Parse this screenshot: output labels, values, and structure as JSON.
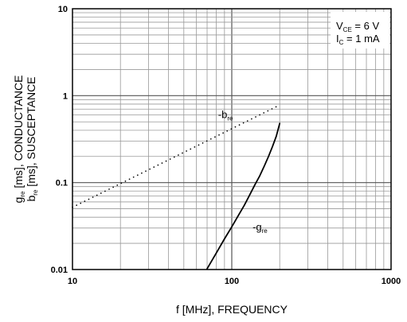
{
  "chart_data": {
    "type": "line",
    "title": "",
    "xlabel": "f [MHz], FREQUENCY",
    "ylabel_lines": [
      {
        "main": "g",
        "sub": "re",
        "rest": " [ms], CONDUCTANCE"
      },
      {
        "main": "b",
        "sub": "re",
        "rest": " [ms], SUSCEPTANCE"
      }
    ],
    "x_scale": "log",
    "y_scale": "log",
    "xlim": [
      10,
      1000
    ],
    "ylim": [
      0.01,
      10
    ],
    "x_ticks": [
      {
        "value": 10,
        "label": "10"
      },
      {
        "value": 100,
        "label": "100"
      },
      {
        "value": 1000,
        "label": "1000"
      }
    ],
    "y_ticks": [
      {
        "value": 10,
        "label": "10"
      },
      {
        "value": 1,
        "label": "1"
      },
      {
        "value": 0.1,
        "label": "0.1"
      },
      {
        "value": 0.01,
        "label": "0.01"
      }
    ],
    "grid": true,
    "conditions": [
      {
        "main": "V",
        "sub": "CE",
        "rest": " = 6 V"
      },
      {
        "main": "I",
        "sub": "C",
        "rest": " = 1 mA"
      }
    ],
    "series": [
      {
        "label_main": "-b",
        "label_sub": "re",
        "style": "dotted",
        "x": [
          10,
          200
        ],
        "y": [
          0.052,
          0.78
        ],
        "label_at": {
          "x": 82,
          "y": 0.55
        }
      },
      {
        "label_main": "-g",
        "label_sub": "re",
        "style": "solid",
        "x": [
          70,
          80,
          90,
          100,
          110,
          120,
          130,
          140,
          150,
          160,
          170,
          180,
          190,
          200
        ],
        "y": [
          0.0102,
          0.0155,
          0.0225,
          0.031,
          0.042,
          0.055,
          0.073,
          0.095,
          0.12,
          0.155,
          0.2,
          0.26,
          0.34,
          0.48
        ],
        "label_at": {
          "x": 135,
          "y": 0.028
        }
      }
    ]
  }
}
